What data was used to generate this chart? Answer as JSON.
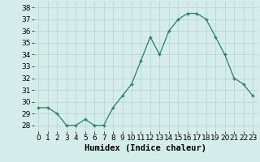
{
  "x": [
    0,
    1,
    2,
    3,
    4,
    5,
    6,
    7,
    8,
    9,
    10,
    11,
    12,
    13,
    14,
    15,
    16,
    17,
    18,
    19,
    20,
    21,
    22,
    23
  ],
  "y": [
    29.5,
    29.5,
    29.0,
    28.0,
    28.0,
    28.5,
    28.0,
    28.0,
    29.5,
    30.5,
    31.5,
    33.5,
    35.5,
    34.0,
    36.0,
    37.0,
    37.5,
    37.5,
    37.0,
    35.5,
    34.0,
    32.0,
    31.5,
    30.5
  ],
  "line_color": "#2e7d6e",
  "marker": "+",
  "bg_color": "#d4edea",
  "grid_color": "#b8d8d4",
  "xlabel": "Humidex (Indice chaleur)",
  "ylim": [
    27.5,
    38.5
  ],
  "xlim": [
    -0.5,
    23.5
  ],
  "yticks": [
    28,
    29,
    30,
    31,
    32,
    33,
    34,
    35,
    36,
    37,
    38
  ],
  "xticks": [
    0,
    1,
    2,
    3,
    4,
    5,
    6,
    7,
    8,
    9,
    10,
    11,
    12,
    13,
    14,
    15,
    16,
    17,
    18,
    19,
    20,
    21,
    22,
    23
  ],
  "xlabel_fontsize": 7.5,
  "tick_fontsize": 6.5,
  "marker_size": 3.5,
  "line_width": 0.9
}
